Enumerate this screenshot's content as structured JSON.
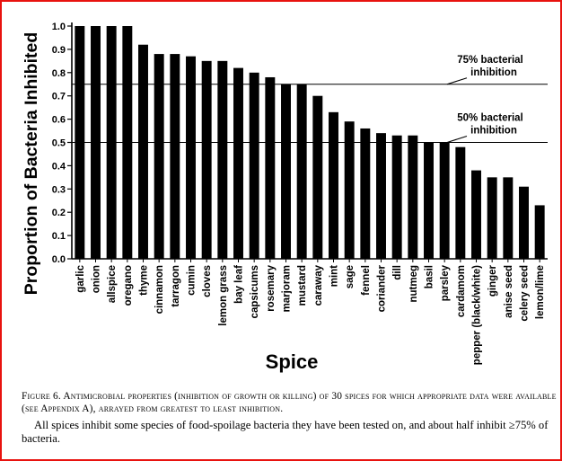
{
  "chart_data": {
    "type": "bar",
    "xlabel": "Spice",
    "ylabel": "Proportion of Bacteria Inhibited",
    "ylim": [
      0,
      1
    ],
    "yticks": [
      "0.0",
      "0.1",
      "0.2",
      "0.3",
      "0.4",
      "0.5",
      "0.6",
      "0.7",
      "0.8",
      "0.9",
      "1.0"
    ],
    "grid": false,
    "categories": [
      "garlic",
      "onion",
      "allspice",
      "oregano",
      "thyme",
      "cinnamon",
      "tarragon",
      "cumin",
      "cloves",
      "lemon grass",
      "bay leaf",
      "capsicums",
      "rosemary",
      "marjoram",
      "mustard",
      "caraway",
      "mint",
      "sage",
      "fennel",
      "coriander",
      "dill",
      "nutmeg",
      "basil",
      "parsley",
      "cardamom",
      "pepper (black/white)",
      "ginger",
      "anise seed",
      "celery seed",
      "lemon/lime"
    ],
    "values": [
      1.0,
      1.0,
      1.0,
      1.0,
      0.92,
      0.88,
      0.88,
      0.87,
      0.85,
      0.85,
      0.82,
      0.8,
      0.78,
      0.75,
      0.75,
      0.7,
      0.63,
      0.59,
      0.56,
      0.54,
      0.53,
      0.53,
      0.5,
      0.5,
      0.48,
      0.38,
      0.35,
      0.35,
      0.31,
      0.23
    ],
    "reference_lines": [
      {
        "value": 0.75,
        "label_line1": "75%  bacterial",
        "label_line2": "inhibition"
      },
      {
        "value": 0.5,
        "label_line1": "50%  bacterial",
        "label_line2": "inhibition"
      }
    ]
  },
  "caption": {
    "figure_label": "Figure 6.   Antimicrobial properties (inhibition of growth or killing) of 30 spices for which appropriate data were available (see Appendix A), arrayed from greatest to least inhibition.",
    "note": "All spices inhibit some species of food-spoilage bacteria they have been tested on, and about half inhibit ≥75% of bacteria."
  },
  "colors": {
    "border": "#e8130f",
    "bars": "#000000",
    "background": "#ffffff"
  }
}
